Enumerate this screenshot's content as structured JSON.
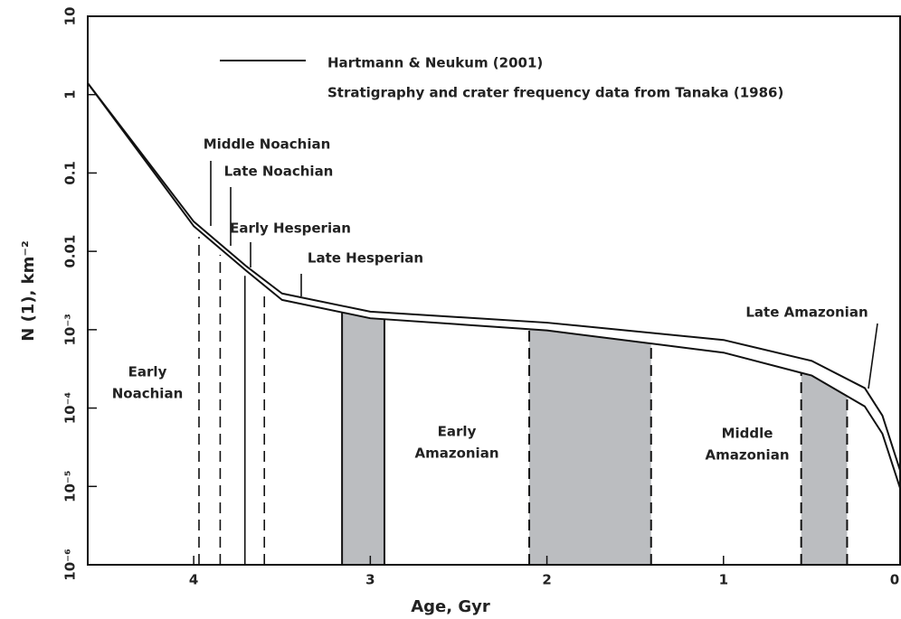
{
  "chart_data": {
    "type": "line",
    "x_label": "Age, Gyr",
    "y_label": "N (1), km⁻²",
    "log_y": true,
    "xlim": [
      4.6,
      0
    ],
    "xticks": [
      4,
      3,
      2,
      1,
      0
    ],
    "ylim": [
      1e-06,
      10
    ],
    "yticks": [
      {
        "value": 1e-06,
        "label": "10⁻⁶"
      },
      {
        "value": 1e-05,
        "label": "10⁻⁵"
      },
      {
        "value": 0.0001,
        "label": "10⁻⁴"
      },
      {
        "value": 0.001,
        "label": "10⁻³"
      },
      0.01,
      0.1,
      1,
      10
    ],
    "x": [
      4.6,
      4.0,
      3.7,
      3.5,
      3.0,
      2.0,
      1.0,
      0.5,
      0.2,
      0.1,
      0
    ],
    "series": [
      {
        "name": "Hartmann & Neukum (2001)",
        "color": "#111111",
        "values": [
          1.4,
          0.024,
          0.0064,
          0.0029,
          0.0017,
          0.00123,
          0.00074,
          0.0004,
          0.00018,
          8e-05,
          1.6e-05
        ]
      },
      {
        "color": "#111111",
        "values": [
          1.4,
          0.021,
          0.0056,
          0.0024,
          0.0014,
          0.00098,
          0.00051,
          0.00026,
          0.000105,
          4.7e-05,
          9.5e-06
        ]
      }
    ],
    "legend_note": "Stratigraphy and crater frequency data from Tanaka (1986)",
    "shaded_regions": [
      {
        "x": [
          3.16,
          2.92
        ],
        "edge": "solid",
        "color": "#bbbdc0"
      },
      {
        "x": [
          2.1,
          1.41
        ],
        "edge": "dashed",
        "color": "#bbbdc0"
      },
      {
        "x": [
          0.56,
          0.3
        ],
        "edge": "dashed",
        "color": "#bbbdc0"
      }
    ],
    "boundaries": [
      {
        "x": 3.97,
        "edge": "dashed"
      },
      {
        "x": 3.85,
        "edge": "dashed"
      },
      {
        "x": 3.71,
        "edge": "solid"
      },
      {
        "x": 3.6,
        "edge": "dashed"
      }
    ],
    "pointer_labels": [
      "Middle Noachian",
      "Late Noachian",
      "Early Hesperian",
      "Late Hesperian",
      "Late Amazonian"
    ],
    "period_labels": [
      [
        "Early",
        "Noachian"
      ],
      [
        "Early",
        "Amazonian"
      ],
      [
        "Middle",
        "Amazonian"
      ]
    ]
  }
}
